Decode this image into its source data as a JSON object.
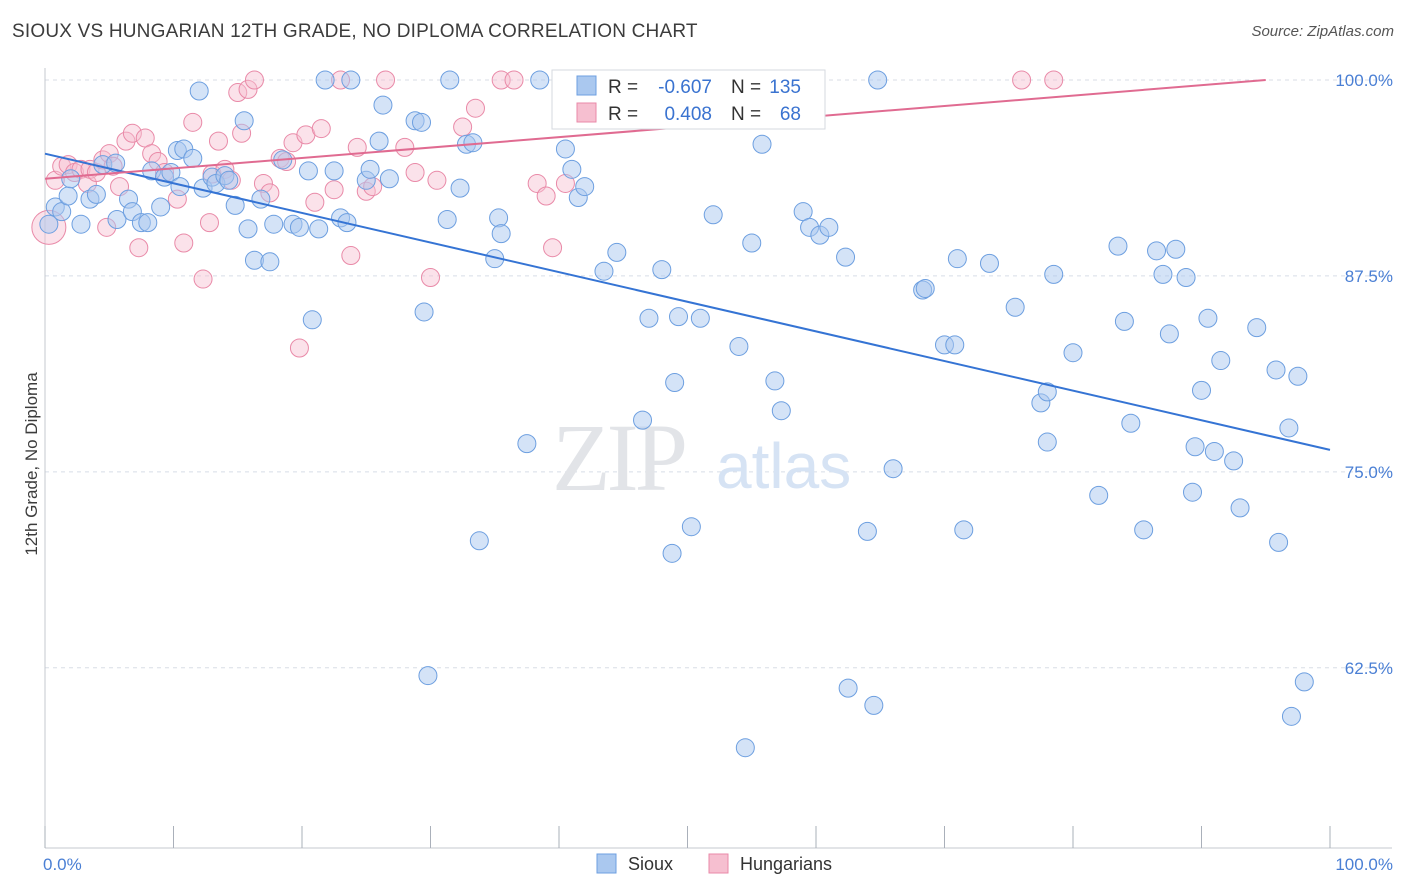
{
  "title": "SIOUX VS HUNGARIAN 12TH GRADE, NO DIPLOMA CORRELATION CHART",
  "source": "Source: ZipAtlas.com",
  "colors": {
    "sioux_fill": "#aac8ef",
    "sioux_stroke": "#6d9fe0",
    "sioux_line": "#3574d4",
    "hungarian_fill": "#f6bfd0",
    "hungarian_stroke": "#e98aa8",
    "hungarian_line": "#e06b91",
    "tick_text": "#4a7fd4",
    "grid": "#d8dde6"
  },
  "legend": {
    "rows": [
      {
        "r_label": "R =",
        "r_value": "-0.607",
        "n_label": "N =",
        "n_value": "135",
        "series": "sioux"
      },
      {
        "r_label": "R =",
        "r_value": "0.408",
        "n_label": "N =",
        "n_value": "68",
        "series": "hungarian"
      }
    ]
  },
  "bottom_legend": [
    "Sioux",
    "Hungarians"
  ],
  "watermark": {
    "zip": "ZIP",
    "atlas": "atlas"
  },
  "chart_data": {
    "type": "scatter",
    "title": "SIOUX VS HUNGARIAN 12TH GRADE, NO DIPLOMA CORRELATION CHART",
    "xlabel": "",
    "ylabel": "12th Grade, No Diploma",
    "xlim": [
      0,
      100
    ],
    "ylim": [
      51,
      100
    ],
    "x_tick_labels": [
      "0.0%",
      "100.0%"
    ],
    "y_ticks": [
      62.5,
      75.0,
      87.5,
      100.0
    ],
    "y_tick_labels": [
      "62.5%",
      "75.0%",
      "87.5%",
      "100.0%"
    ],
    "grid": true,
    "legend_position": "top-center",
    "series": [
      {
        "name": "Sioux",
        "r": -0.607,
        "n": 135,
        "trend": {
          "x": [
            0,
            100
          ],
          "y": [
            95.3,
            76.4
          ]
        },
        "points": [
          [
            0.3,
            90.8
          ],
          [
            0.8,
            91.9
          ],
          [
            1.3,
            91.6
          ],
          [
            1.8,
            92.6
          ],
          [
            2.0,
            93.7
          ],
          [
            2.8,
            90.8
          ],
          [
            3.5,
            92.4
          ],
          [
            4.0,
            92.7
          ],
          [
            4.5,
            94.6
          ],
          [
            5.5,
            94.7
          ],
          [
            5.6,
            91.1
          ],
          [
            6.5,
            92.4
          ],
          [
            6.8,
            91.6
          ],
          [
            7.5,
            90.9
          ],
          [
            8.0,
            90.9
          ],
          [
            8.3,
            94.2
          ],
          [
            9.0,
            91.9
          ],
          [
            9.3,
            93.8
          ],
          [
            9.8,
            94.1
          ],
          [
            10.3,
            95.5
          ],
          [
            10.5,
            93.2
          ],
          [
            10.8,
            95.6
          ],
          [
            11.5,
            95.0
          ],
          [
            12.0,
            99.3
          ],
          [
            12.3,
            93.1
          ],
          [
            13.0,
            93.8
          ],
          [
            13.3,
            93.4
          ],
          [
            14.0,
            93.9
          ],
          [
            14.3,
            93.6
          ],
          [
            14.8,
            92.0
          ],
          [
            15.5,
            97.4
          ],
          [
            15.8,
            90.5
          ],
          [
            16.3,
            88.5
          ],
          [
            16.8,
            92.4
          ],
          [
            17.5,
            88.4
          ],
          [
            17.8,
            90.8
          ],
          [
            18.5,
            94.9
          ],
          [
            19.3,
            90.8
          ],
          [
            19.8,
            90.6
          ],
          [
            20.5,
            94.2
          ],
          [
            20.8,
            84.7
          ],
          [
            21.3,
            90.5
          ],
          [
            21.8,
            100.0
          ],
          [
            22.5,
            94.2
          ],
          [
            23.0,
            91.2
          ],
          [
            23.5,
            90.9
          ],
          [
            23.8,
            100.0
          ],
          [
            25.0,
            93.6
          ],
          [
            25.3,
            94.3
          ],
          [
            26.0,
            96.1
          ],
          [
            26.3,
            98.4
          ],
          [
            26.8,
            93.7
          ],
          [
            28.8,
            97.4
          ],
          [
            29.3,
            97.3
          ],
          [
            29.5,
            85.2
          ],
          [
            29.8,
            62.0
          ],
          [
            31.3,
            91.1
          ],
          [
            31.5,
            100.0
          ],
          [
            32.3,
            93.1
          ],
          [
            32.8,
            95.9
          ],
          [
            33.3,
            96.0
          ],
          [
            33.8,
            70.6
          ],
          [
            35.0,
            88.6
          ],
          [
            35.3,
            91.2
          ],
          [
            35.5,
            90.2
          ],
          [
            37.5,
            76.8
          ],
          [
            38.5,
            100.0
          ],
          [
            40.5,
            95.6
          ],
          [
            41.0,
            94.3
          ],
          [
            41.5,
            92.5
          ],
          [
            42.0,
            93.2
          ],
          [
            43.5,
            87.8
          ],
          [
            44.5,
            89.0
          ],
          [
            46.5,
            78.3
          ],
          [
            47.0,
            84.8
          ],
          [
            47.5,
            100.0
          ],
          [
            48.0,
            87.9
          ],
          [
            48.8,
            69.8
          ],
          [
            49.0,
            80.7
          ],
          [
            49.3,
            84.9
          ],
          [
            50.3,
            71.5
          ],
          [
            51.0,
            84.8
          ],
          [
            52.0,
            91.4
          ],
          [
            54.0,
            83.0
          ],
          [
            54.5,
            57.4
          ],
          [
            55.0,
            89.6
          ],
          [
            55.8,
            95.9
          ],
          [
            56.8,
            80.8
          ],
          [
            57.3,
            78.9
          ],
          [
            59.0,
            91.6
          ],
          [
            59.5,
            90.6
          ],
          [
            60.3,
            90.1
          ],
          [
            61.0,
            90.6
          ],
          [
            62.3,
            88.7
          ],
          [
            62.5,
            61.2
          ],
          [
            64.0,
            71.2
          ],
          [
            64.5,
            60.1
          ],
          [
            64.8,
            100.0
          ],
          [
            66.0,
            75.2
          ],
          [
            68.3,
            86.6
          ],
          [
            68.5,
            86.7
          ],
          [
            70.0,
            83.1
          ],
          [
            70.8,
            83.1
          ],
          [
            71.0,
            88.6
          ],
          [
            71.5,
            71.3
          ],
          [
            73.5,
            88.3
          ],
          [
            75.5,
            85.5
          ],
          [
            77.5,
            79.4
          ],
          [
            78.0,
            76.9
          ],
          [
            78.0,
            80.1
          ],
          [
            78.5,
            87.6
          ],
          [
            80.0,
            82.6
          ],
          [
            82.0,
            73.5
          ],
          [
            83.5,
            89.4
          ],
          [
            84.0,
            84.6
          ],
          [
            84.5,
            78.1
          ],
          [
            85.5,
            71.3
          ],
          [
            86.5,
            89.1
          ],
          [
            87.0,
            87.6
          ],
          [
            87.5,
            83.8
          ],
          [
            88.0,
            89.2
          ],
          [
            88.8,
            87.4
          ],
          [
            89.3,
            73.7
          ],
          [
            89.5,
            76.6
          ],
          [
            90.0,
            80.2
          ],
          [
            90.5,
            84.8
          ],
          [
            91.0,
            76.3
          ],
          [
            91.5,
            82.1
          ],
          [
            92.5,
            75.7
          ],
          [
            93.0,
            72.7
          ],
          [
            94.3,
            84.2
          ],
          [
            95.8,
            81.5
          ],
          [
            96.0,
            70.5
          ],
          [
            96.8,
            77.8
          ],
          [
            97.0,
            59.4
          ],
          [
            97.5,
            81.1
          ],
          [
            98.0,
            61.6
          ]
        ]
      },
      {
        "name": "Hungarians",
        "r": 0.408,
        "n": 68,
        "trend": {
          "x": [
            0,
            95
          ],
          "y": [
            93.7,
            100.0
          ]
        },
        "points": [
          [
            0.3,
            90.6
          ],
          [
            0.8,
            93.6
          ],
          [
            1.3,
            94.5
          ],
          [
            1.8,
            94.6
          ],
          [
            2.3,
            94.1
          ],
          [
            2.8,
            94.3
          ],
          [
            3.3,
            93.4
          ],
          [
            3.5,
            94.3
          ],
          [
            4.0,
            94.1
          ],
          [
            4.5,
            94.9
          ],
          [
            4.8,
            90.6
          ],
          [
            5.0,
            95.3
          ],
          [
            5.3,
            94.5
          ],
          [
            5.8,
            93.2
          ],
          [
            6.3,
            96.1
          ],
          [
            6.8,
            96.6
          ],
          [
            7.3,
            89.3
          ],
          [
            7.8,
            96.3
          ],
          [
            8.3,
            95.3
          ],
          [
            8.8,
            94.8
          ],
          [
            9.3,
            94.1
          ],
          [
            10.3,
            92.4
          ],
          [
            10.8,
            89.6
          ],
          [
            11.5,
            97.3
          ],
          [
            12.3,
            87.3
          ],
          [
            12.8,
            90.9
          ],
          [
            13.0,
            94.0
          ],
          [
            13.5,
            96.1
          ],
          [
            14.0,
            94.3
          ],
          [
            14.5,
            93.6
          ],
          [
            15.0,
            99.2
          ],
          [
            15.3,
            96.6
          ],
          [
            15.8,
            99.4
          ],
          [
            16.3,
            100.0
          ],
          [
            17.0,
            93.4
          ],
          [
            17.5,
            92.8
          ],
          [
            18.3,
            95.0
          ],
          [
            18.8,
            94.8
          ],
          [
            19.3,
            96.0
          ],
          [
            19.8,
            82.9
          ],
          [
            20.3,
            96.5
          ],
          [
            21.0,
            92.2
          ],
          [
            21.5,
            96.9
          ],
          [
            22.5,
            93.0
          ],
          [
            23.0,
            100.0
          ],
          [
            23.8,
            88.8
          ],
          [
            24.3,
            95.7
          ],
          [
            25.0,
            92.9
          ],
          [
            25.5,
            93.2
          ],
          [
            26.5,
            100.0
          ],
          [
            28.0,
            95.7
          ],
          [
            28.8,
            94.1
          ],
          [
            30.0,
            87.4
          ],
          [
            30.5,
            93.6
          ],
          [
            32.5,
            97.0
          ],
          [
            33.5,
            98.2
          ],
          [
            35.5,
            100.0
          ],
          [
            36.5,
            100.0
          ],
          [
            38.3,
            93.4
          ],
          [
            39.0,
            92.6
          ],
          [
            39.5,
            89.3
          ],
          [
            40.5,
            93.4
          ],
          [
            41.5,
            100.0
          ],
          [
            47.0,
            100.0
          ],
          [
            51.0,
            100.0
          ],
          [
            56.5,
            100.0
          ],
          [
            76.0,
            100.0
          ],
          [
            78.5,
            100.0
          ]
        ]
      }
    ]
  }
}
